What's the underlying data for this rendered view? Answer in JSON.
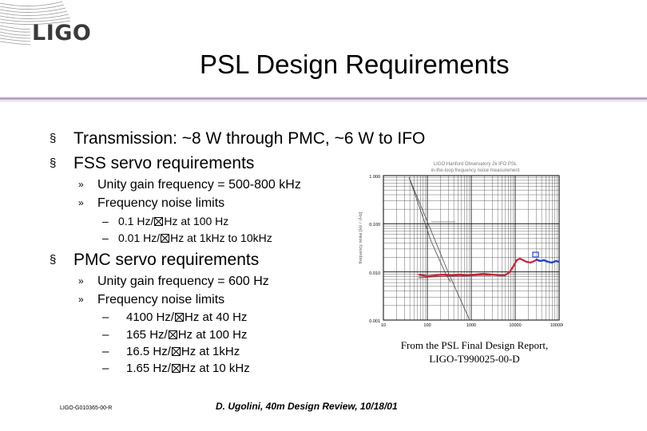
{
  "logo": {
    "text": "LIGO"
  },
  "title": "PSL Design Requirements",
  "bullets": {
    "b1": "Transmission:  ~8 W through PMC, ~6 W to IFO",
    "b2": "FSS servo requirements",
    "b2_sub1": "Unity gain frequency = 500-800 kHz",
    "b2_sub2": "Frequency noise limits",
    "b2_sub2_i1a": "0.1 Hz/",
    "b2_sub2_i1b": "Hz at 100 Hz",
    "b2_sub2_i2a": "0.01 Hz/",
    "b2_sub2_i2b": "Hz at 1kHz to 10kHz",
    "b3": "PMC servo requirements",
    "b3_sub1": "Unity gain frequency = 600 Hz",
    "b3_sub2": "Frequency noise limits",
    "b3_i1a": "4100 Hz/",
    "b3_i1b": "Hz at 40 Hz",
    "b3_i2a": "165 Hz/",
    "b3_i2b": "Hz at 100 Hz",
    "b3_i3a": "16.5 Hz/",
    "b3_i3b": "Hz at 1kHz",
    "b3_i4a": "1.65 Hz/",
    "b3_i4b": "Hz at 10 kHz"
  },
  "symbols": {
    "bullet": "§",
    "sub": "»",
    "dash": "–"
  },
  "plot": {
    "title1": "LIGO Hanford Observatory 2k IFO PSL",
    "title2": "in-the-loop frequency noise measurement",
    "ylabel": "frequency noise [Hz / √Hz]",
    "yticks": [
      "1.000",
      "0.100",
      "0.010",
      "0.001"
    ],
    "xticks": [
      "10",
      "100",
      "1000",
      "10000",
      "100000"
    ]
  },
  "caption": {
    "line1": "From the PSL Final Design Report,",
    "line2": "LIGO-T990025-00-D"
  },
  "footer": {
    "doc_id": "LIGO-G010365-00-R",
    "presenter": "D. Ugolini, 40m Design Review, 10/18/01"
  },
  "colors": {
    "rule": "#b8a3c6",
    "measured_red": "#cc2233",
    "measured_blue": "#2244cc"
  }
}
